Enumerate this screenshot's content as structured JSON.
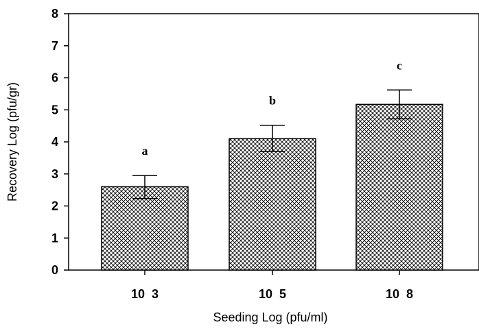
{
  "chart_data": {
    "type": "bar",
    "categories": [
      "10  3",
      "10  5",
      "10  8"
    ],
    "values": [
      2.6,
      4.1,
      5.17
    ],
    "error_upper": [
      0.35,
      0.42,
      0.45
    ],
    "error_lower": [
      0.37,
      0.4,
      0.45
    ],
    "annotations": [
      "a",
      "b",
      "c"
    ],
    "xlabel": "Seeding Log (pfu/ml)",
    "ylabel": "Recovery Log (pfu/gr)",
    "ylim": [
      0,
      8
    ],
    "yticks": [
      "0",
      "1",
      "2",
      "3",
      "4",
      "5",
      "6",
      "7",
      "8"
    ],
    "grid": false,
    "legend": "none",
    "bar_fill": "crosshatch"
  }
}
